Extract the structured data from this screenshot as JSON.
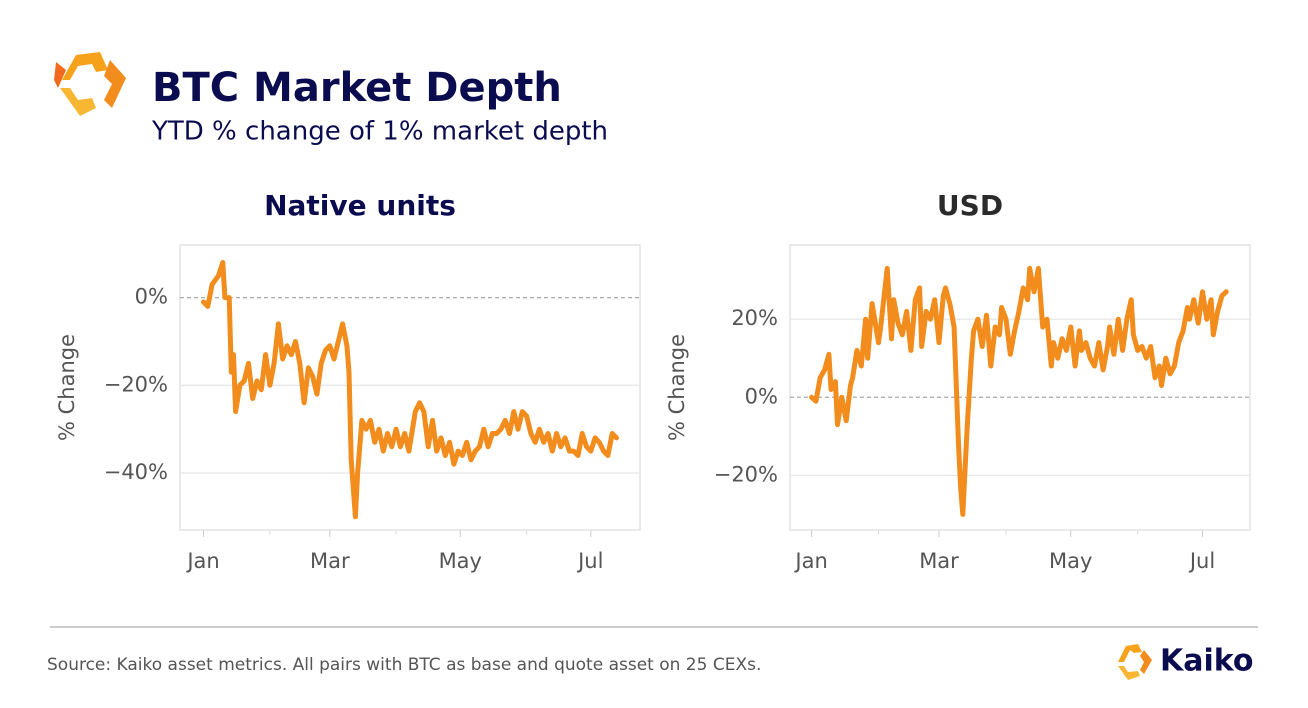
{
  "title": "BTC Market Depth",
  "subtitle": "YTD % change of 1% market depth",
  "source": "Source: Kaiko asset metrics. All pairs with BTC as base and quote asset on 25 CEXs.",
  "brand": "Kaiko",
  "chart_data": [
    {
      "type": "line",
      "title": "Native units",
      "y_label": "% Change",
      "xlim": [
        -10,
        205
      ],
      "ylim": [
        -53,
        12
      ],
      "xticks": [
        {
          "value": 1,
          "label": "Jan"
        },
        {
          "value": 60,
          "label": "Mar"
        },
        {
          "value": 121,
          "label": "May"
        },
        {
          "value": 182,
          "label": "Jul"
        }
      ],
      "xminorticks": [
        32,
        91,
        152
      ],
      "yticks": [
        {
          "value": 0,
          "label": "0%"
        },
        {
          "value": -20,
          "label": "−20%"
        },
        {
          "value": -40,
          "label": "−40%"
        }
      ],
      "grid": true,
      "series": [
        {
          "name": "BTC",
          "color": "#f28c1c",
          "x": [
            1,
            3,
            5,
            8,
            10,
            11,
            13,
            14,
            15,
            16,
            18,
            20,
            22,
            24,
            26,
            28,
            30,
            32,
            34,
            36,
            38,
            40,
            42,
            44,
            46,
            48,
            50,
            52,
            54,
            56,
            58,
            60,
            62,
            64,
            66,
            68,
            69,
            70,
            72,
            73,
            75,
            77,
            79,
            81,
            83,
            85,
            87,
            89,
            91,
            93,
            95,
            97,
            99,
            100,
            102,
            104,
            106,
            108,
            110,
            112,
            114,
            116,
            118,
            120,
            122,
            124,
            126,
            128,
            130,
            132,
            134,
            136,
            138,
            140,
            142,
            144,
            146,
            148,
            150,
            152,
            154,
            156,
            158,
            160,
            162,
            164,
            166,
            168,
            170,
            172,
            174,
            176,
            178,
            180,
            182,
            184,
            186,
            188,
            190,
            192,
            194
          ],
          "values": [
            -1,
            -2,
            3,
            5,
            8,
            0,
            0,
            -17,
            -13,
            -26,
            -20,
            -19,
            -15,
            -23,
            -19,
            -21,
            -13,
            -20,
            -15,
            -6,
            -14,
            -11,
            -13,
            -10,
            -15,
            -24,
            -16,
            -18,
            -22,
            -15,
            -12,
            -11,
            -14,
            -10,
            -6,
            -11,
            -17,
            -37,
            -50,
            -40,
            -28,
            -30,
            -28,
            -33,
            -30,
            -35,
            -31,
            -34,
            -30,
            -34,
            -31,
            -35,
            -29,
            -26,
            -24,
            -26,
            -34,
            -28,
            -35,
            -32,
            -36,
            -33,
            -38,
            -35,
            -36,
            -33,
            -37,
            -35,
            -34,
            -30,
            -34,
            -31,
            -31,
            -30,
            -28,
            -31,
            -26,
            -30,
            -26,
            -27,
            -31,
            -33,
            -30,
            -33,
            -31,
            -35,
            -31,
            -34,
            -32,
            -35,
            -35,
            -36,
            -31,
            -34,
            -35,
            -32,
            -33,
            -35,
            -36,
            -31,
            -32
          ]
        }
      ]
    },
    {
      "type": "line",
      "title": "USD",
      "y_label": "% Change",
      "xlim": [
        -9,
        204
      ],
      "ylim": [
        -34,
        39
      ],
      "xticks": [
        {
          "value": 1,
          "label": "Jan"
        },
        {
          "value": 60,
          "label": "Mar"
        },
        {
          "value": 121,
          "label": "May"
        },
        {
          "value": 182,
          "label": "Jul"
        }
      ],
      "xminorticks": [
        32,
        91,
        152
      ],
      "yticks": [
        {
          "value": 20,
          "label": "20%"
        },
        {
          "value": 0,
          "label": "0%"
        },
        {
          "value": -20,
          "label": "−20%"
        }
      ],
      "grid": true,
      "series": [
        {
          "name": "BTC",
          "color": "#f28c1c",
          "x": [
            1,
            3,
            5,
            7,
            9,
            10,
            12,
            13,
            15,
            17,
            19,
            20,
            22,
            24,
            26,
            27,
            29,
            32,
            33,
            36,
            38,
            39,
            41,
            43,
            45,
            47,
            49,
            51,
            52,
            54,
            56,
            58,
            60,
            62,
            63,
            65,
            67,
            69,
            70,
            71,
            73,
            75,
            76,
            78,
            80,
            82,
            84,
            86,
            88,
            89,
            91,
            93,
            95,
            97,
            99,
            101,
            102,
            104,
            106,
            108,
            110,
            112,
            113,
            115,
            117,
            119,
            121,
            123,
            125,
            126,
            128,
            130,
            132,
            134,
            136,
            138,
            139,
            141,
            143,
            145,
            147,
            149,
            150,
            152,
            154,
            156,
            158,
            160,
            162,
            163,
            165,
            167,
            169,
            171,
            173,
            175,
            176,
            178,
            180,
            182,
            184,
            186,
            187,
            189,
            191,
            193
          ],
          "values": [
            0,
            -1,
            5,
            7,
            11,
            2,
            4,
            -7,
            0,
            -6,
            3,
            5,
            12,
            8,
            20,
            10,
            24,
            14,
            18,
            33,
            15,
            25,
            19,
            16,
            22,
            12,
            25,
            28,
            13,
            22,
            20,
            25,
            14,
            26,
            28,
            24,
            18,
            -12,
            -23,
            -30,
            -8,
            10,
            17,
            20,
            13,
            21,
            8,
            18,
            16,
            23,
            20,
            11,
            17,
            22,
            28,
            25,
            33,
            27,
            33,
            18,
            20,
            8,
            14,
            10,
            15,
            12,
            18,
            8,
            17,
            12,
            14,
            10,
            8,
            14,
            7,
            13,
            18,
            11,
            20,
            12,
            20,
            25,
            16,
            12,
            13,
            10,
            13,
            5,
            8,
            3,
            10,
            6,
            8,
            14,
            17,
            23,
            20,
            25,
            19,
            27,
            20,
            25,
            16,
            22,
            26,
            27
          ]
        }
      ]
    }
  ]
}
